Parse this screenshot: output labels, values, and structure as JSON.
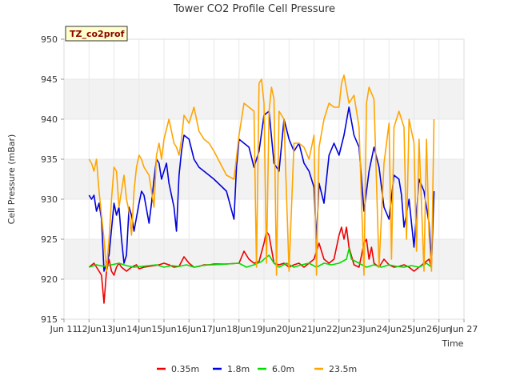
{
  "chart_data": {
    "type": "line",
    "title": "Tower CO2 Profile Cell Pressure",
    "xlabel": "Time",
    "ylabel": "Cell Pressure (mBar)",
    "site_tag": "TZ_co2prof",
    "xlim": [
      11,
      27
    ],
    "ylim": [
      915,
      950
    ],
    "x_ticks": [
      11,
      12,
      13,
      14,
      15,
      16,
      17,
      18,
      19,
      20,
      21,
      22,
      23,
      24,
      25,
      26,
      27
    ],
    "x_tick_labels": [
      "Jun 11",
      "12Jun",
      "13Jun",
      "14Jun",
      "15Jun",
      "16Jun",
      "17Jun",
      "18Jun",
      "19Jun",
      "20Jun",
      "21Jun",
      "22Jun",
      "23Jun",
      "24Jun",
      "25Jun",
      "26Jun",
      "Jun 27"
    ],
    "y_ticks": [
      915,
      920,
      925,
      930,
      935,
      940,
      945,
      950
    ],
    "y_tick_labels": [
      "915",
      "920",
      "925",
      "930",
      "935",
      "940",
      "945",
      "950"
    ],
    "legend_position": "bottom",
    "series": [
      {
        "name": "0.35m",
        "color": "#ee0000",
        "x": [
          12.0,
          12.2,
          12.4,
          12.5,
          12.6,
          12.7,
          12.8,
          12.9,
          13.0,
          13.1,
          13.2,
          13.3,
          13.5,
          13.7,
          13.9,
          14.0,
          14.2,
          14.4,
          14.6,
          14.8,
          15.0,
          15.2,
          15.4,
          15.6,
          15.8,
          16.0,
          16.2,
          16.4,
          16.6,
          16.8,
          17.0,
          17.5,
          18.0,
          18.2,
          18.4,
          18.6,
          18.8,
          19.0,
          19.1,
          19.2,
          19.4,
          19.6,
          19.8,
          20.0,
          20.2,
          20.4,
          20.6,
          20.8,
          21.0,
          21.2,
          21.4,
          21.6,
          21.8,
          22.0,
          22.1,
          22.2,
          22.3,
          22.4,
          22.6,
          22.8,
          23.0,
          23.1,
          23.2,
          23.3,
          23.4,
          23.6,
          23.8,
          24.0,
          24.2,
          24.4,
          24.6,
          24.8,
          25.0,
          25.2,
          25.4,
          25.6,
          25.7
        ],
        "y": [
          921.5,
          922.0,
          921.0,
          920.5,
          917.0,
          921.0,
          922.5,
          921.0,
          920.5,
          921.5,
          922.0,
          921.5,
          921.0,
          921.5,
          921.8,
          921.3,
          921.5,
          921.6,
          921.7,
          921.8,
          922.0,
          921.8,
          921.5,
          921.6,
          922.8,
          922.0,
          921.5,
          921.6,
          921.8,
          921.8,
          921.9,
          921.9,
          922.0,
          923.5,
          922.5,
          922.0,
          922.2,
          924.5,
          926.0,
          925.5,
          922.0,
          921.8,
          922.0,
          921.5,
          921.8,
          922.0,
          921.5,
          922.0,
          922.5,
          924.5,
          922.5,
          922.0,
          922.5,
          925.5,
          926.5,
          925.0,
          926.5,
          924.0,
          921.8,
          921.5,
          924.5,
          925.0,
          922.5,
          924.0,
          922.0,
          921.5,
          922.5,
          921.8,
          921.5,
          921.6,
          921.8,
          921.5,
          921.0,
          921.5,
          922.0,
          922.5,
          921.5
        ]
      },
      {
        "name": "1.8m",
        "color": "#0000dd",
        "x": [
          12.0,
          12.1,
          12.2,
          12.3,
          12.4,
          12.5,
          12.6,
          12.7,
          12.8,
          13.0,
          13.1,
          13.2,
          13.3,
          13.4,
          13.5,
          13.6,
          13.7,
          13.8,
          14.0,
          14.1,
          14.2,
          14.4,
          14.5,
          14.6,
          14.7,
          14.8,
          14.9,
          15.0,
          15.1,
          15.2,
          15.4,
          15.5,
          15.6,
          15.7,
          15.8,
          16.0,
          16.2,
          16.4,
          16.6,
          16.8,
          17.0,
          17.5,
          17.8,
          17.9,
          18.0,
          18.2,
          18.4,
          18.6,
          18.8,
          19.0,
          19.2,
          19.4,
          19.6,
          19.8,
          20.0,
          20.2,
          20.4,
          20.6,
          20.8,
          21.0,
          21.1,
          21.2,
          21.4,
          21.6,
          21.8,
          22.0,
          22.2,
          22.4,
          22.6,
          22.8,
          23.0,
          23.2,
          23.4,
          23.6,
          23.8,
          24.0,
          24.2,
          24.4,
          24.5,
          24.6,
          24.8,
          25.0,
          25.2,
          25.4,
          25.6,
          25.7,
          25.8
        ],
        "y": [
          930.5,
          930.0,
          930.5,
          928.5,
          929.5,
          927.5,
          921.0,
          922.0,
          923.0,
          929.5,
          928.0,
          929.0,
          925.0,
          922.0,
          923.0,
          929.0,
          928.0,
          926.0,
          929.5,
          931.0,
          930.5,
          927.0,
          929.5,
          932.5,
          935.0,
          934.5,
          932.5,
          933.5,
          934.5,
          932.0,
          929.0,
          926.0,
          933.0,
          936.0,
          938.0,
          937.5,
          935.0,
          934.0,
          933.5,
          933.0,
          932.5,
          931.0,
          927.5,
          934.0,
          937.5,
          937.0,
          936.5,
          934.0,
          936.0,
          940.5,
          941.0,
          934.5,
          933.5,
          940.0,
          937.5,
          936.0,
          937.0,
          934.5,
          933.5,
          931.5,
          925.0,
          932.0,
          929.5,
          935.5,
          937.0,
          935.5,
          938.0,
          941.5,
          938.0,
          936.5,
          928.5,
          933.5,
          936.5,
          934.0,
          929.0,
          927.5,
          933.0,
          932.5,
          930.5,
          926.5,
          930.0,
          924.0,
          932.5,
          931.0,
          927.0,
          922.0,
          931.0
        ]
      },
      {
        "name": "6.0m",
        "color": "#00dd00",
        "x": [
          12.0,
          12.3,
          12.6,
          12.9,
          13.2,
          13.5,
          13.8,
          14.1,
          14.4,
          14.7,
          15.0,
          15.3,
          15.6,
          15.9,
          16.2,
          16.5,
          16.8,
          17.0,
          17.5,
          18.0,
          18.3,
          18.6,
          18.9,
          19.0,
          19.2,
          19.4,
          19.6,
          19.9,
          20.2,
          20.5,
          20.8,
          21.1,
          21.4,
          21.7,
          22.0,
          22.3,
          22.4,
          22.5,
          22.8,
          23.1,
          23.4,
          23.7,
          24.0,
          24.3,
          24.6,
          24.9,
          25.2,
          25.5,
          25.7
        ],
        "y": [
          921.5,
          921.8,
          921.6,
          921.8,
          922.0,
          921.7,
          921.5,
          921.6,
          921.7,
          921.8,
          921.5,
          921.7,
          921.6,
          921.8,
          921.5,
          921.7,
          921.8,
          921.8,
          921.9,
          922.0,
          921.5,
          921.8,
          922.2,
          922.5,
          923.0,
          922.0,
          921.5,
          922.0,
          921.5,
          921.8,
          922.0,
          921.5,
          922.0,
          921.8,
          922.0,
          922.5,
          923.8,
          922.5,
          922.0,
          921.5,
          921.8,
          921.5,
          921.8,
          921.6,
          921.5,
          921.7,
          921.5,
          922.0,
          921.5
        ]
      },
      {
        "name": "23.5m",
        "color": "#ffa500",
        "x": [
          12.0,
          12.1,
          12.2,
          12.3,
          12.4,
          12.5,
          12.6,
          12.7,
          12.8,
          12.9,
          13.0,
          13.1,
          13.2,
          13.3,
          13.4,
          13.5,
          13.6,
          13.7,
          13.8,
          13.9,
          14.0,
          14.1,
          14.2,
          14.4,
          14.6,
          14.7,
          14.8,
          14.9,
          15.0,
          15.2,
          15.4,
          15.5,
          15.6,
          15.7,
          15.8,
          16.0,
          16.2,
          16.4,
          16.6,
          16.8,
          17.0,
          17.5,
          17.8,
          18.0,
          18.2,
          18.4,
          18.6,
          18.7,
          18.8,
          18.9,
          19.0,
          19.1,
          19.2,
          19.3,
          19.4,
          19.5,
          19.6,
          19.8,
          20.0,
          20.2,
          20.4,
          20.6,
          20.8,
          21.0,
          21.1,
          21.2,
          21.4,
          21.6,
          21.8,
          22.0,
          22.1,
          22.2,
          22.4,
          22.6,
          22.8,
          23.0,
          23.1,
          23.2,
          23.4,
          23.6,
          23.8,
          24.0,
          24.1,
          24.2,
          24.4,
          24.6,
          24.7,
          24.8,
          25.0,
          25.1,
          25.2,
          25.4,
          25.5,
          25.6,
          25.7,
          25.8
        ],
        "y": [
          935.0,
          934.5,
          933.5,
          935.0,
          931.0,
          928.0,
          925.0,
          921.0,
          925.0,
          930.0,
          934.0,
          933.5,
          929.0,
          931.0,
          933.0,
          930.0,
          928.5,
          925.5,
          931.0,
          934.0,
          935.5,
          935.0,
          934.0,
          933.0,
          929.0,
          935.5,
          937.0,
          935.0,
          937.5,
          940.0,
          937.0,
          936.5,
          935.5,
          937.5,
          940.5,
          939.5,
          941.5,
          938.5,
          937.5,
          937.0,
          936.0,
          933.0,
          932.5,
          938.0,
          942.0,
          941.5,
          941.0,
          921.5,
          944.5,
          945.0,
          942.0,
          922.0,
          941.0,
          944.0,
          942.5,
          920.5,
          941.0,
          940.0,
          921.0,
          937.0,
          937.0,
          936.5,
          935.0,
          938.0,
          920.5,
          936.5,
          940.0,
          942.0,
          941.5,
          941.5,
          944.5,
          945.5,
          942.0,
          943.0,
          939.0,
          920.5,
          942.0,
          944.0,
          942.5,
          921.5,
          934.5,
          939.5,
          922.5,
          939.0,
          941.0,
          939.0,
          925.0,
          940.0,
          937.0,
          923.5,
          937.5,
          921.0,
          937.5,
          925.5,
          921.0,
          940.0
        ]
      }
    ]
  }
}
